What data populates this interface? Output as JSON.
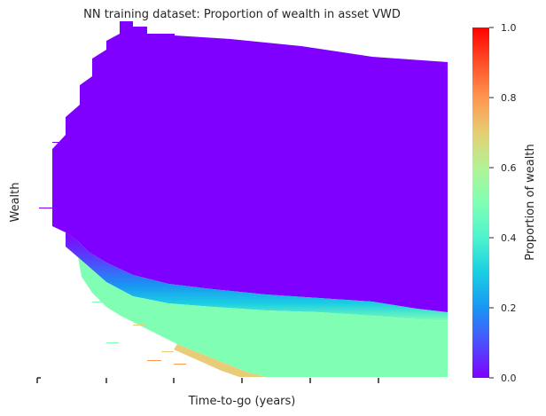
{
  "chart_data": {
    "type": "heatmap",
    "title": "NN training dataset: Proportion of wealth in asset VWD",
    "xlabel": "Time-to-go (years)",
    "ylabel": "Wealth",
    "colorbar": {
      "label": "Proportion of wealth",
      "min": 0.0,
      "max": 1.0,
      "ticks": [
        "0.0",
        "0.2",
        "0.4",
        "0.6",
        "0.8",
        "1.0"
      ],
      "colormap": "rainbow"
    },
    "x_tick_count": 6,
    "grid": false,
    "description_values": {
      "upper_region_proportion": 0.0,
      "lower_band_proportion": 0.6,
      "bottom_edge_proportion": 0.75
    }
  }
}
